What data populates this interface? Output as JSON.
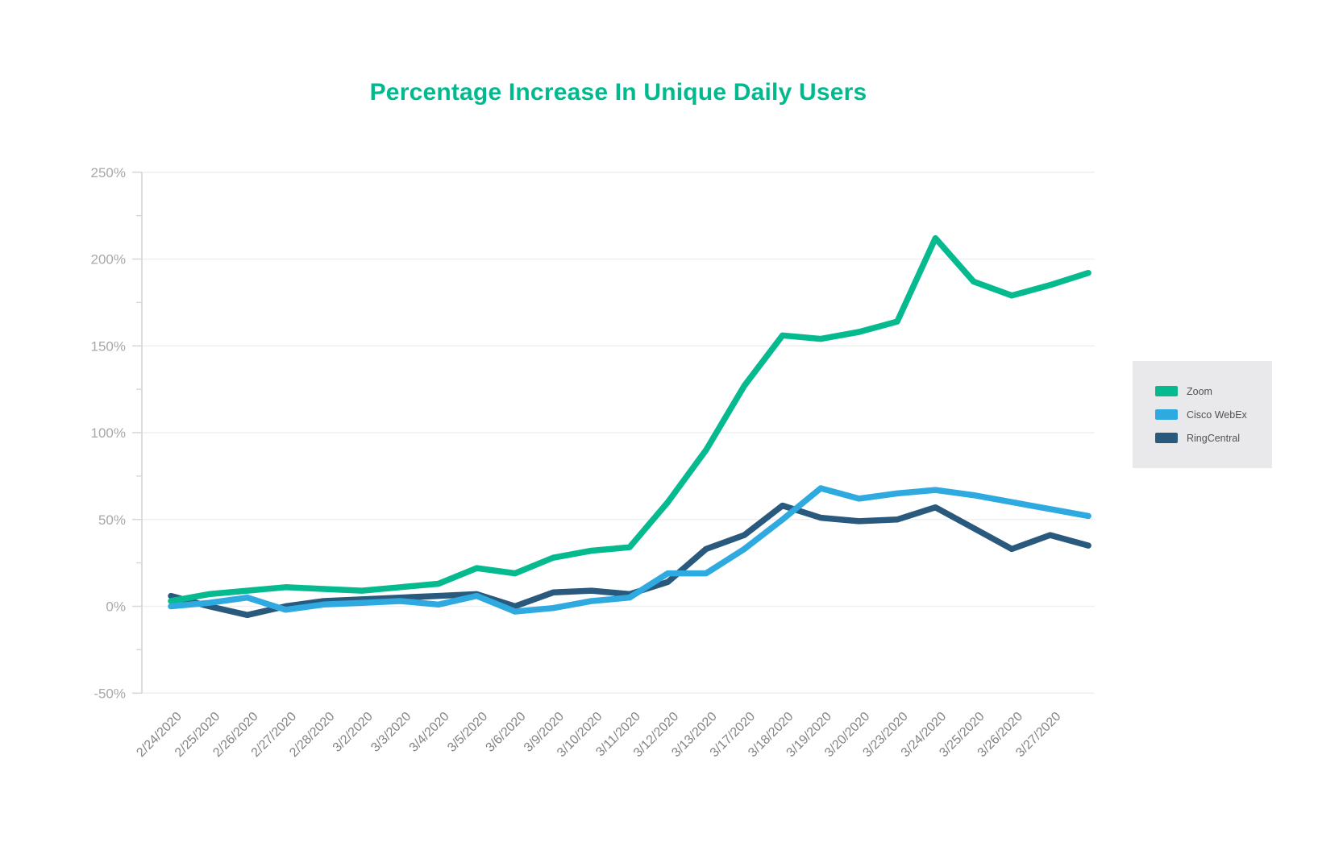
{
  "chart_data": {
    "type": "line",
    "title": "Percentage Increase In Unique Daily Users",
    "title_color": "#00ba8d",
    "categories": [
      "2/24/2020",
      "2/25/2020",
      "2/26/2020",
      "2/27/2020",
      "2/28/2020",
      "3/2/2020",
      "3/3/2020",
      "3/4/2020",
      "3/5/2020",
      "3/6/2020",
      "3/9/2020",
      "3/10/2020",
      "3/11/2020",
      "3/12/2020",
      "3/13/2020",
      "3/17/2020",
      "3/18/2020",
      "3/19/2020",
      "3/20/2020",
      "3/23/2020",
      "3/24/2020",
      "3/25/2020",
      "3/26/2020",
      "3/27/2020",
      ""
    ],
    "series": [
      {
        "name": "Zoom",
        "color": "#06ba8f",
        "values": [
          3,
          7,
          9,
          11,
          10,
          9,
          11,
          13,
          22,
          19,
          28,
          32,
          34,
          60,
          90,
          127,
          156,
          154,
          158,
          164,
          212,
          187,
          179,
          185,
          192
        ]
      },
      {
        "name": "Cisco WebEx",
        "color": "#2faae1",
        "values": [
          0,
          2,
          5,
          -2,
          1,
          2,
          3,
          1,
          6,
          -3,
          -1,
          3,
          5,
          19,
          19,
          33,
          50,
          68,
          62,
          65,
          67,
          64,
          60,
          56,
          52
        ]
      },
      {
        "name": "RingCentral",
        "color": "#2a597e",
        "values": [
          6,
          0,
          -5,
          0,
          3,
          4,
          5,
          6,
          7,
          0,
          8,
          9,
          7,
          14,
          33,
          41,
          58,
          51,
          49,
          50,
          57,
          45,
          33,
          41,
          35
        ]
      }
    ],
    "ylim": [
      -50,
      250
    ],
    "y_ticks": [
      {
        "value": 250,
        "label": "250%"
      },
      {
        "value": 200,
        "label": "200%"
      },
      {
        "value": 150,
        "label": "150%"
      },
      {
        "value": 100,
        "label": "100%"
      },
      {
        "value": 50,
        "label": "50%"
      },
      {
        "value": 0,
        "label": "0%"
      },
      {
        "value": -50,
        "label": "-50%"
      }
    ],
    "y_minor_ticks": [
      225,
      175,
      125,
      75,
      25,
      -25
    ],
    "xlabel": "",
    "ylabel": "",
    "grid": "horizontal-major",
    "legend_position": "right",
    "x_tick_rotation": -45,
    "last_point_unlabeled": true
  },
  "style_colors": {
    "gridline": "#efeff0",
    "axis": "#d7d8da",
    "y_tick_label": "#a6a8ab",
    "x_tick_label": "#828487",
    "legend_background": "#e9e9eb",
    "legend_text": "#505254"
  }
}
